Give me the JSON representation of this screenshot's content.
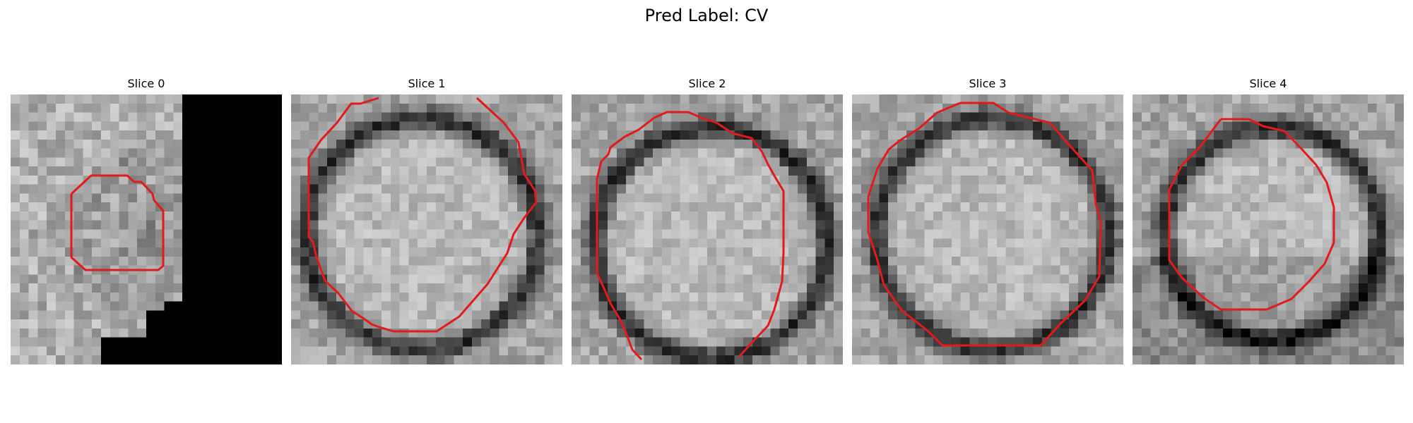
{
  "figure": {
    "title": "Pred Label: CV",
    "contour_color": "#e31a1c",
    "colormap": "gray",
    "panels": [
      {
        "title": "Slice 0",
        "kind": "edge"
      },
      {
        "title": "Slice 1",
        "kind": "blob"
      },
      {
        "title": "Slice 2",
        "kind": "blob"
      },
      {
        "title": "Slice 3",
        "kind": "blob"
      },
      {
        "title": "Slice 4",
        "kind": "blob"
      }
    ]
  }
}
